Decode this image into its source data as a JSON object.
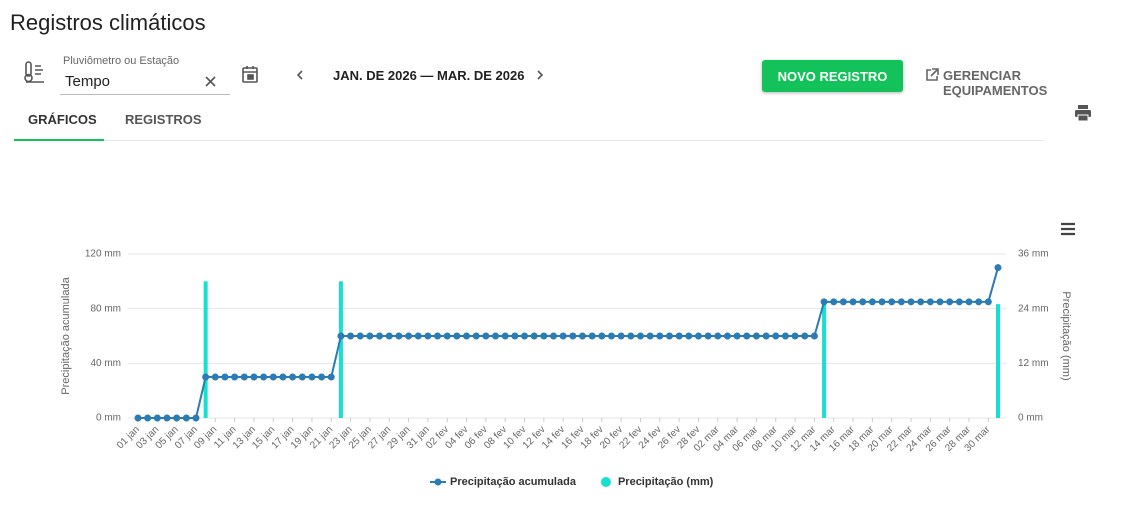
{
  "header": {
    "title": "Registros climáticos"
  },
  "filters": {
    "station_label": "Pluviômetro ou Estação",
    "station_value": "Tempo",
    "date_range": "JAN. DE 2026 — MAR. DE 2026"
  },
  "actions": {
    "new_record": "NOVO REGISTRO",
    "manage_equipment": "GERENCIAR EQUIPAMENTOS"
  },
  "tabs": [
    "GRÁFICOS",
    "REGISTROS"
  ],
  "chart_data": {
    "type": "combo",
    "ylabel": "Precipitação acumulada",
    "y2label": "Precipitação (mm)",
    "categories": [
      "01 jan",
      null,
      "03 jan",
      null,
      "05 jan",
      null,
      "07 jan",
      null,
      "09 jan",
      null,
      "11 jan",
      null,
      "13 jan",
      null,
      "15 jan",
      null,
      "17 jan",
      null,
      "19 jan",
      null,
      "21 jan",
      null,
      "23 jan",
      null,
      "25 jan",
      null,
      "27 jan",
      null,
      "29 jan",
      null,
      "31 jan",
      null,
      "02 fev",
      null,
      "04 fev",
      null,
      "06 fev",
      null,
      "08 fev",
      null,
      "10 fev",
      null,
      "12 fev",
      null,
      "14 fev",
      null,
      "16 fev",
      null,
      "18 fev",
      null,
      "20 fev",
      null,
      "22 fev",
      null,
      "24 fev",
      null,
      "26 fev",
      null,
      "28 fev",
      null,
      "02 mar",
      null,
      "04 mar",
      null,
      "06 mar",
      null,
      "08 mar",
      null,
      "10 mar",
      null,
      "12 mar",
      null,
      "14 mar",
      null,
      "16 mar",
      null,
      "18 mar",
      null,
      "20 mar",
      null,
      "22 mar",
      null,
      "24 mar",
      null,
      "26 mar",
      null,
      "28 mar",
      null,
      "30 mar",
      null
    ],
    "series": [
      {
        "name": "Precipitação acumulada",
        "type": "line",
        "axis": "y",
        "color": "#2b7bb5",
        "values": [
          0,
          0,
          0,
          0,
          0,
          0,
          0,
          30,
          30,
          30,
          30,
          30,
          30,
          30,
          30,
          30,
          30,
          30,
          30,
          30,
          30,
          60,
          60,
          60,
          60,
          60,
          60,
          60,
          60,
          60,
          60,
          60,
          60,
          60,
          60,
          60,
          60,
          60,
          60,
          60,
          60,
          60,
          60,
          60,
          60,
          60,
          60,
          60,
          60,
          60,
          60,
          60,
          60,
          60,
          60,
          60,
          60,
          60,
          60,
          60,
          60,
          60,
          60,
          60,
          60,
          60,
          60,
          60,
          60,
          60,
          60,
          85,
          85,
          85,
          85,
          85,
          85,
          85,
          85,
          85,
          85,
          85,
          85,
          85,
          85,
          85,
          85,
          85,
          85,
          110
        ]
      },
      {
        "name": "Precipitação (mm)",
        "type": "bar",
        "axis": "y2",
        "color": "#16e0d0",
        "values": [
          0,
          0,
          0,
          0,
          0,
          0,
          0,
          30,
          0,
          0,
          0,
          0,
          0,
          0,
          0,
          0,
          0,
          0,
          0,
          0,
          0,
          30,
          0,
          0,
          0,
          0,
          0,
          0,
          0,
          0,
          0,
          0,
          0,
          0,
          0,
          0,
          0,
          0,
          0,
          0,
          0,
          0,
          0,
          0,
          0,
          0,
          0,
          0,
          0,
          0,
          0,
          0,
          0,
          0,
          0,
          0,
          0,
          0,
          0,
          0,
          0,
          0,
          0,
          0,
          0,
          0,
          0,
          0,
          0,
          0,
          0,
          25,
          0,
          0,
          0,
          0,
          0,
          0,
          0,
          0,
          0,
          0,
          0,
          0,
          0,
          0,
          0,
          0,
          0,
          25
        ]
      }
    ],
    "ylim": [
      0,
      120
    ],
    "yticks": [
      {
        "value": 0,
        "label": "0 mm"
      },
      {
        "value": 40,
        "label": "40 mm"
      },
      {
        "value": 80,
        "label": "80 mm"
      },
      {
        "value": 120,
        "label": "120 mm"
      }
    ],
    "y2lim": [
      0,
      36
    ],
    "y2ticks": [
      {
        "value": 0,
        "label": "0 mm"
      },
      {
        "value": 12,
        "label": "12 mm"
      },
      {
        "value": 24,
        "label": "24 mm"
      },
      {
        "value": 36,
        "label": "36 mm"
      }
    ],
    "grid": true,
    "legend": "bottom"
  }
}
